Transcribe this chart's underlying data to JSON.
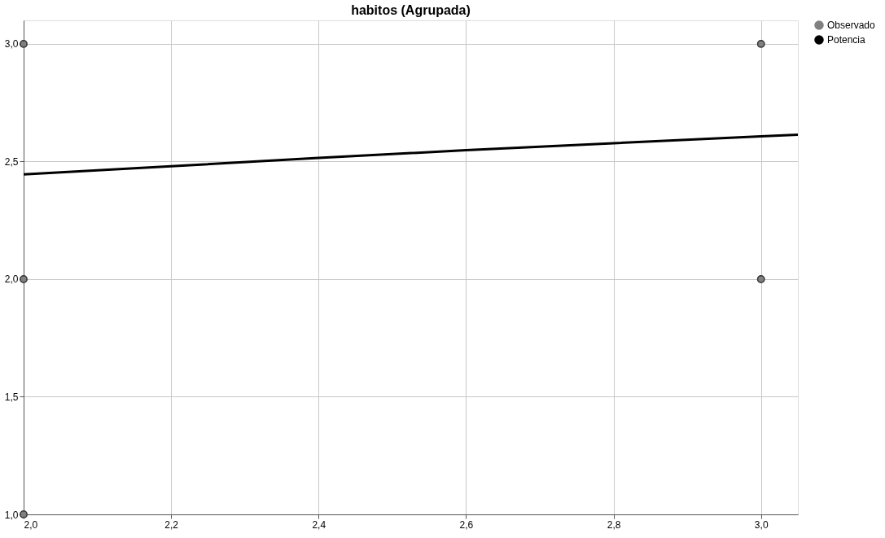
{
  "chart_data": {
    "type": "scatter",
    "title": "habitos (Agrupada)",
    "series": [
      {
        "name": "Observado",
        "color": "#808080",
        "marker": "circle",
        "x": [
          2,
          2,
          2,
          3,
          3
        ],
        "values": [
          3,
          2,
          1,
          3,
          2
        ]
      },
      {
        "name": "Potencia",
        "type": "line",
        "color": "#000000",
        "marker": "none",
        "line_style": "solid",
        "x": [
          2.0,
          2.2,
          2.4,
          2.6,
          2.8,
          3.0,
          3.05
        ],
        "values": [
          2.445,
          2.48,
          2.515,
          2.548,
          2.578,
          2.607,
          2.614
        ]
      }
    ],
    "xlim": [
      2,
      3.05
    ],
    "ylim": [
      1,
      3.1
    ],
    "xticks": [
      {
        "value": 2,
        "label": "2,0"
      },
      {
        "value": 2.2,
        "label": "2,2"
      },
      {
        "value": 2.4,
        "label": "2,4"
      },
      {
        "value": 2.6,
        "label": "2,6"
      },
      {
        "value": 2.8,
        "label": "2,8"
      },
      {
        "value": 3,
        "label": "3,0"
      }
    ],
    "yticks": [
      {
        "value": 1,
        "label": "1,0"
      },
      {
        "value": 1.5,
        "label": "1,5"
      },
      {
        "value": 2,
        "label": "2,0"
      },
      {
        "value": 2.5,
        "label": "2,5"
      },
      {
        "value": 3,
        "label": "3,0"
      }
    ],
    "grid": true,
    "legend": "right"
  }
}
